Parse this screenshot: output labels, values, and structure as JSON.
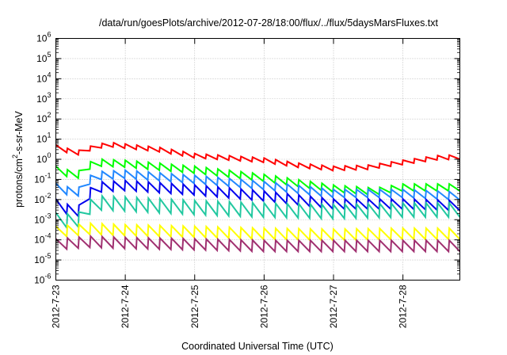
{
  "chart_data": {
    "type": "line",
    "title": "/data/run/goesPlots/archive/2012-07-28/18:00/flux/../flux/5daysMarsFluxes.txt",
    "xlabel": "Coordinated Universal Time (UTC)",
    "ylabel_main": "protons/cm",
    "ylabel_sup": "2",
    "ylabel_rest": "-s-sr-MeV",
    "y_scale": "log",
    "ylim_exponents": [
      -6,
      6
    ],
    "y_tick_base": "10",
    "y_tick_exponents": [
      "-6",
      "-5",
      "-4",
      "-3",
      "-2",
      "-1",
      "0",
      "1",
      "2",
      "3",
      "4",
      "5",
      "6"
    ],
    "xlim_days": [
      0,
      5.82
    ],
    "x_ticks": [
      {
        "day": 0,
        "label": "2012-7-23"
      },
      {
        "day": 1,
        "label": "2012-7-24"
      },
      {
        "day": 2,
        "label": "2012-7-25"
      },
      {
        "day": 3,
        "label": "2012-7-26"
      },
      {
        "day": 4,
        "label": "2012-7-27"
      },
      {
        "day": 5,
        "label": "2012-7-28"
      }
    ],
    "grid": true,
    "legend": "none",
    "series": [
      {
        "color": "#ff0000",
        "sawtooth_amp_decades": 0.22,
        "envelope": [
          [
            0,
            4.0
          ],
          [
            0.3,
            2.0
          ],
          [
            0.55,
            4.0
          ],
          [
            0.75,
            5.5
          ],
          [
            1.0,
            4.5
          ],
          [
            1.5,
            3.0
          ],
          [
            2.0,
            1.5
          ],
          [
            3.0,
            0.9
          ],
          [
            3.5,
            0.5
          ],
          [
            4.0,
            0.35
          ],
          [
            4.5,
            0.4
          ],
          [
            5.0,
            0.7
          ],
          [
            5.5,
            1.2
          ],
          [
            5.82,
            1.3
          ]
        ]
      },
      {
        "color": "#00ff00",
        "sawtooth_amp_decades": 0.35,
        "envelope": [
          [
            0,
            0.3
          ],
          [
            0.3,
            0.15
          ],
          [
            0.55,
            0.7
          ],
          [
            1.0,
            0.6
          ],
          [
            2.0,
            0.3
          ],
          [
            3.0,
            0.12
          ],
          [
            4.0,
            0.035
          ],
          [
            4.6,
            0.025
          ],
          [
            5.0,
            0.04
          ],
          [
            5.82,
            0.04
          ]
        ]
      },
      {
        "color": "#2288ff",
        "sawtooth_amp_decades": 0.4,
        "envelope": [
          [
            0,
            0.04
          ],
          [
            0.3,
            0.02
          ],
          [
            0.55,
            0.15
          ],
          [
            1.0,
            0.18
          ],
          [
            2.0,
            0.1
          ],
          [
            3.0,
            0.05
          ],
          [
            4.0,
            0.02
          ],
          [
            5.0,
            0.02
          ],
          [
            5.82,
            0.015
          ]
        ]
      },
      {
        "color": "#0000ee",
        "sawtooth_amp_decades": 0.5,
        "envelope": [
          [
            0,
            0.006
          ],
          [
            0.3,
            0.002
          ],
          [
            0.55,
            0.04
          ],
          [
            1.0,
            0.05
          ],
          [
            2.0,
            0.03
          ],
          [
            3.0,
            0.015
          ],
          [
            4.0,
            0.006
          ],
          [
            5.0,
            0.006
          ],
          [
            5.82,
            0.005
          ]
        ]
      },
      {
        "color": "#22c8a0",
        "sawtooth_amp_decades": 0.7,
        "envelope": [
          [
            0,
            0.001
          ],
          [
            0.3,
            0.0008
          ],
          [
            0.55,
            0.007
          ],
          [
            1.0,
            0.006
          ],
          [
            2.0,
            0.004
          ],
          [
            3.0,
            0.003
          ],
          [
            4.0,
            0.0025
          ],
          [
            5.0,
            0.003
          ],
          [
            5.82,
            0.003
          ]
        ]
      },
      {
        "color": "#ffff00",
        "sawtooth_amp_decades": 0.55,
        "envelope": [
          [
            0,
            0.00025
          ],
          [
            0.5,
            0.00035
          ],
          [
            1.0,
            0.0003
          ],
          [
            2.0,
            0.00025
          ],
          [
            3.0,
            0.0002
          ],
          [
            4.0,
            0.00018
          ],
          [
            5.0,
            0.0002
          ],
          [
            5.82,
            0.0002
          ]
        ]
      },
      {
        "color": "#a03070",
        "sawtooth_amp_decades": 0.55,
        "envelope": [
          [
            0,
            6e-05
          ],
          [
            0.5,
            8e-05
          ],
          [
            1.0,
            7e-05
          ],
          [
            2.0,
            6e-05
          ],
          [
            3.0,
            5e-05
          ],
          [
            4.0,
            5e-05
          ],
          [
            5.0,
            5e-05
          ],
          [
            5.82,
            5e-05
          ]
        ]
      }
    ]
  }
}
